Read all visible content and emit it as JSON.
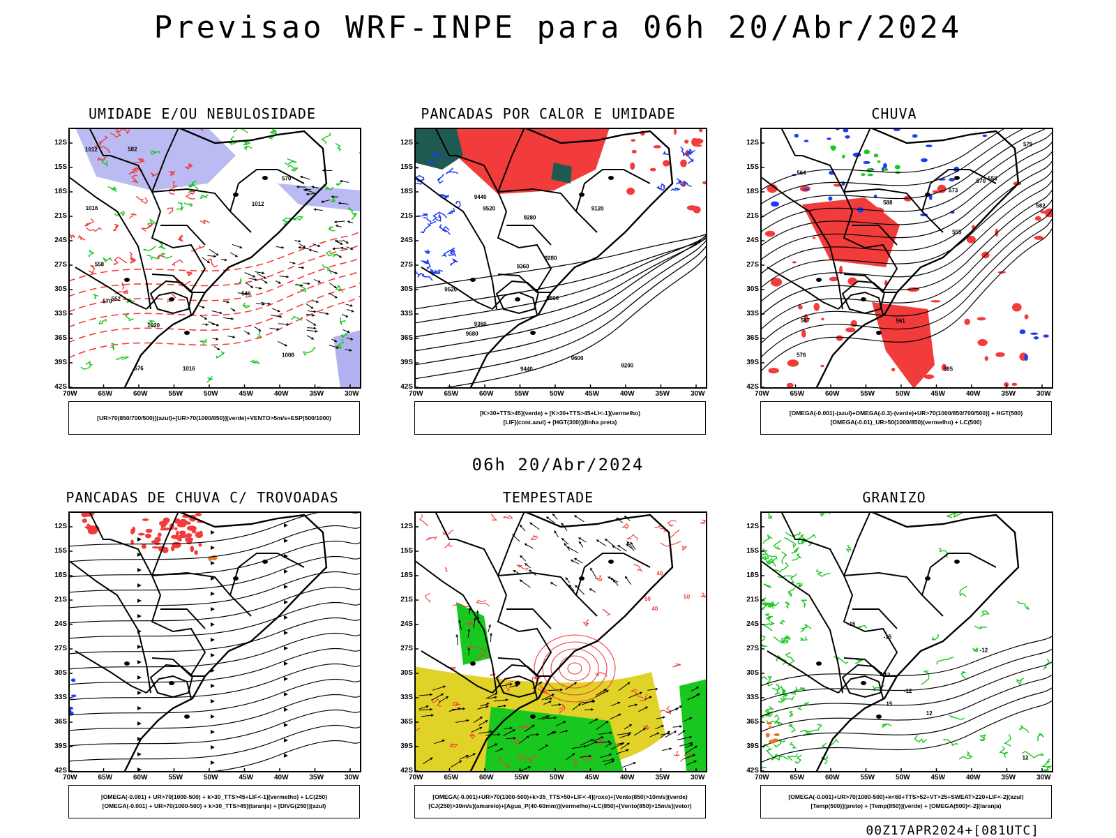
{
  "header": {
    "title": "Previsao WRF-INPE  para 06h 20/Abr/2024",
    "mid_date": "06h 20/Abr/2024",
    "footer": "00Z17APR2024+[081UTC]"
  },
  "axes": {
    "lat_labels": [
      "12S",
      "15S",
      "18S",
      "21S",
      "24S",
      "27S",
      "30S",
      "33S",
      "36S",
      "39S",
      "42S"
    ],
    "lon_labels": [
      "70W",
      "65W",
      "60W",
      "55W",
      "50W",
      "45W",
      "40W",
      "35W",
      "30W"
    ]
  },
  "colors": {
    "red": "#f23c3c",
    "green": "#19c81e",
    "blue": "#1e3cf0",
    "lilac": "#aaaaf0",
    "teal": "#1e5a50",
    "yellow": "#e1d228",
    "orange": "#e67823"
  },
  "panels": [
    {
      "title": "UMIDADE E/OU NEBULOSIDADE",
      "legend": [
        "[UR>70(850/700/500)](azul)+[UR>70(1000/850)](verde)+VENTO>5m/s+ESP(500/1000)"
      ],
      "contour_labels": [
        "1012",
        "1016",
        "1012",
        "1020",
        "1016",
        "1008",
        "576",
        "570",
        "582",
        "570",
        "558",
        "552",
        "546"
      ]
    },
    {
      "title": "PANCADAS POR CALOR E UMIDADE",
      "legend": [
        "[K>30+TTS>45](verde) + [K>30+TTS>45+LI<-1](vermelho)",
        "[LIF](cont.azul) + [HGT(300)](linha preta)"
      ],
      "contour_labels": [
        "9680",
        "9600",
        "9600",
        "9520",
        "9520",
        "9440",
        "9440",
        "9360",
        "9360",
        "9280",
        "9280",
        "9200",
        "9120"
      ]
    },
    {
      "title": "CHUVA",
      "legend": [
        "[OMEGA(-0.001)-(azul)+OMEGA(-0.3)-(verde)+UR>70(1000/850/700/500)] + HGT(500)",
        "[OMEGA(-0.01)_UR>50(1000/850)(vermelho) + LC(500)"
      ],
      "contour_labels": [
        "585",
        "588",
        "582",
        "579",
        "576",
        "573",
        "570",
        "567",
        "564",
        "561",
        "558",
        "555"
      ]
    },
    {
      "title": "PANCADAS DE CHUVA C/ TROVOADAS",
      "legend": [
        "[OMEGA(-0.001) + UR>70(1000-500) + k>30_TTS>45+LIF<-1](vermelho) + LC(250)",
        "[OMEGA(-0.001) + UR>70(1000-500) + k>30_TTS>45](laranja) + [DIVG(250)](azul)"
      ],
      "contour_labels": []
    },
    {
      "title": "TEMPESTADE",
      "legend": [
        "[OMEGA(-0.001)+UR>70(1000-500)+k>35_TTS>50+LIF<-4](roxo)+[Vento(850)>10m/s](verde)",
        "[CJ(250)>30m/s](amarelo)+[Agua_P(40-60mm)](vermelho)+LC(850)+[Vento(850)>15m/s](vetor)"
      ],
      "contour_labels": [
        "40",
        "50",
        "50",
        "40"
      ]
    },
    {
      "title": "GRANIZO",
      "legend": [
        "[OMEGA(-0.001)+UR>70(1000-500)+k<60+TTS>52+VT>25+SWEAT>220+LIF<-2](azul)",
        "[Temp(500)](preto) + [Temp(850)](verde) + [OMEGA(500)<-2](laranja)"
      ],
      "contour_labels": [
        "-12",
        "-12",
        "-15",
        "-15",
        "-12",
        "12",
        "15",
        "15",
        "12"
      ]
    }
  ]
}
